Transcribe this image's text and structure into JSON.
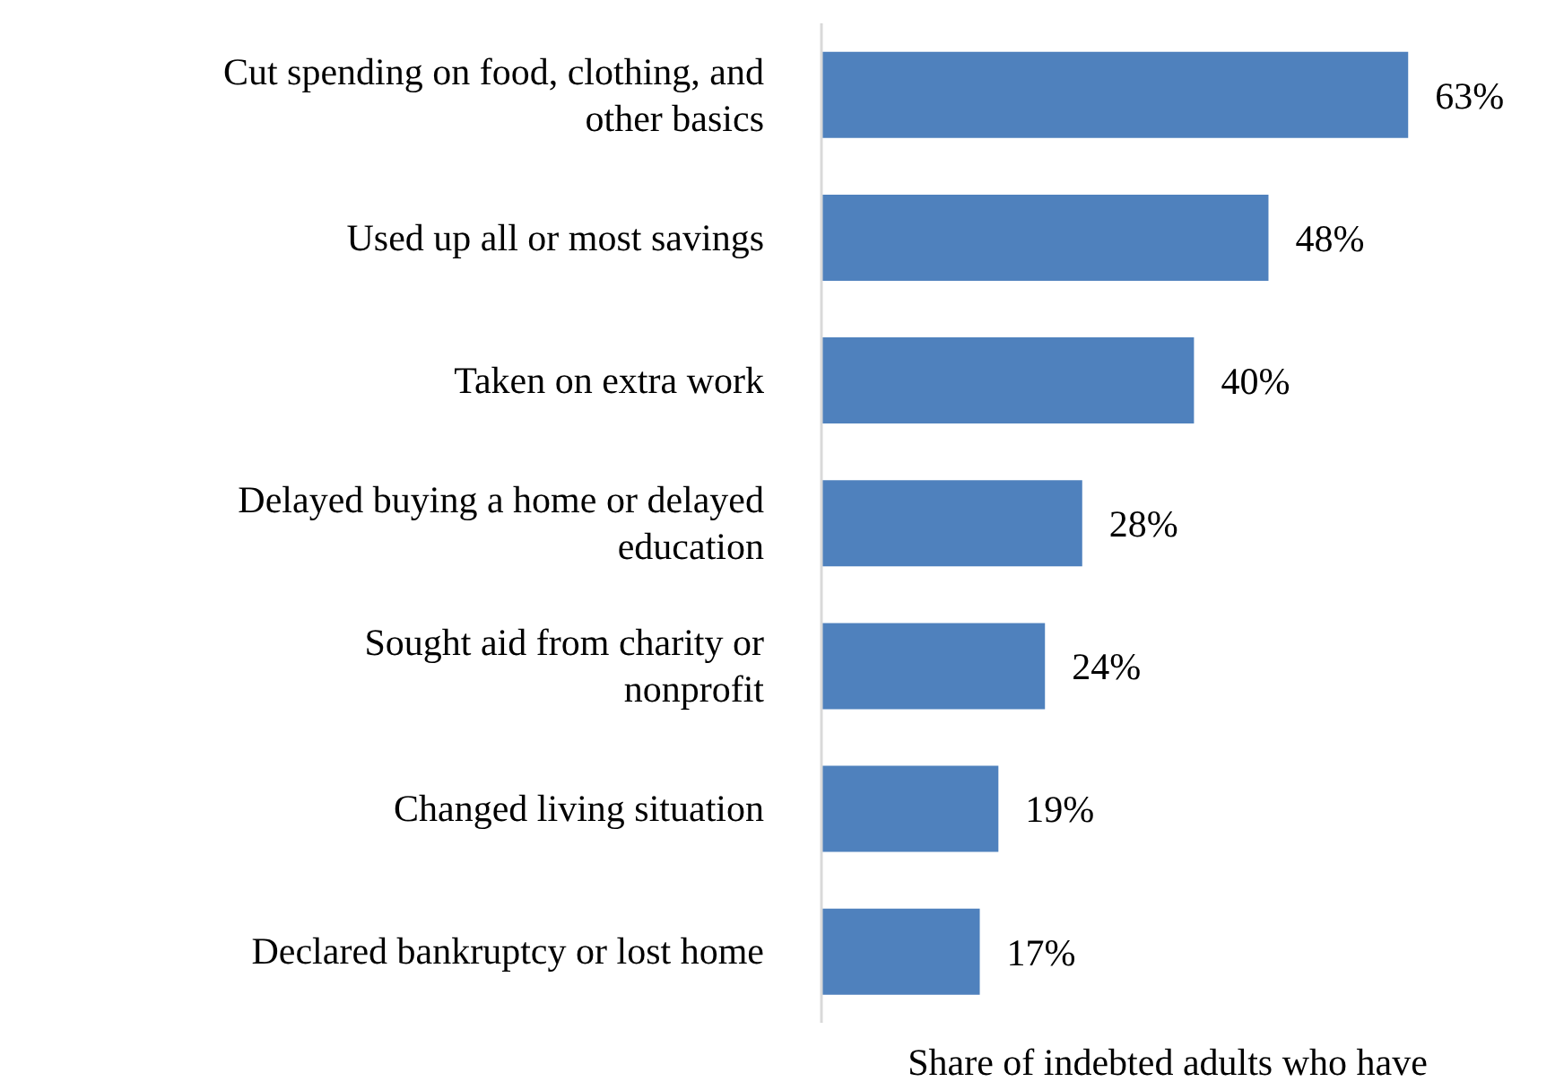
{
  "chart_data": {
    "type": "bar",
    "orientation": "horizontal",
    "categories": [
      "Cut spending on food, clothing, and other basics",
      "Used up all or most savings",
      "Taken on extra work",
      "Delayed buying a home or delayed education",
      "Sought aid from charity or nonprofit",
      "Changed living situation",
      "Declared bankruptcy or lost home"
    ],
    "values": [
      63,
      48,
      40,
      28,
      24,
      19,
      17
    ],
    "value_labels": [
      "63%",
      "48%",
      "40%",
      "28%",
      "24%",
      "19%",
      "17%"
    ],
    "color": "#4f81bd",
    "xlabel": "Share of indebted adults who have"
  }
}
